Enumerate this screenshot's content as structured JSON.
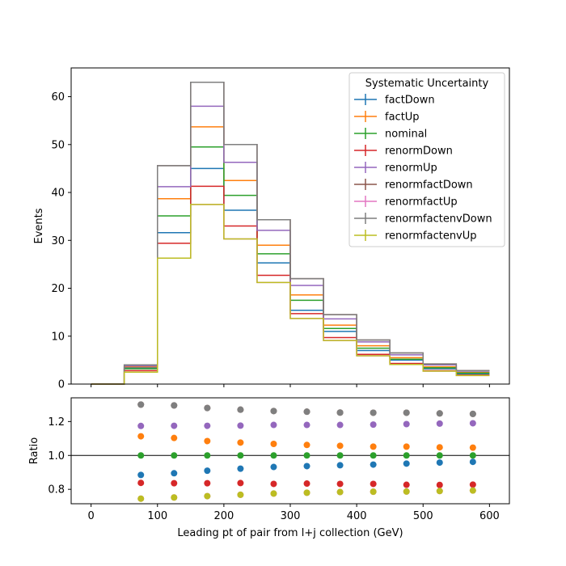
{
  "chart_data": [
    {
      "type": "line",
      "subtype": "step-histogram",
      "xlabel": "",
      "ylabel": "Events",
      "xlim": [
        -30,
        630
      ],
      "ylim": [
        0,
        66
      ],
      "xticks": [
        0,
        100,
        200,
        300,
        400,
        500,
        600
      ],
      "yticks": [
        0,
        10,
        20,
        30,
        40,
        50,
        60
      ],
      "bin_edges": [
        0,
        50,
        100,
        150,
        200,
        250,
        300,
        350,
        400,
        450,
        500,
        550,
        600
      ],
      "legend": {
        "title": "Systematic Uncertainty",
        "placement": "top-right"
      },
      "series": [
        {
          "name": "factDown",
          "color": "#1f77b4",
          "values": [
            0,
            3.4,
            31.6,
            45.0,
            36.3,
            25.3,
            15.4,
            11.0,
            7.0,
            5.0,
            3.2,
            2.1
          ]
        },
        {
          "name": "factUp",
          "color": "#ff7f0e",
          "values": [
            0,
            3.6,
            38.7,
            53.7,
            42.5,
            29.0,
            18.6,
            12.3,
            8.0,
            5.5,
            3.6,
            2.4
          ]
        },
        {
          "name": "nominal",
          "color": "#2ca02c",
          "values": [
            0,
            3.2,
            35.1,
            49.5,
            39.4,
            27.2,
            17.5,
            11.6,
            7.5,
            5.2,
            3.4,
            2.3
          ]
        },
        {
          "name": "renormDown",
          "color": "#d62728",
          "values": [
            0,
            2.8,
            29.4,
            41.3,
            33.0,
            22.7,
            14.7,
            9.7,
            6.2,
            4.3,
            2.8,
            1.9
          ]
        },
        {
          "name": "renormUp",
          "color": "#9467bd",
          "values": [
            0,
            3.8,
            41.2,
            58.0,
            46.3,
            32.1,
            20.6,
            13.6,
            8.8,
            6.1,
            4.0,
            2.7
          ]
        },
        {
          "name": "renormfactDown",
          "color": "#8c564b",
          "values": [
            0,
            4.0,
            45.6,
            63.0,
            50.0,
            34.3,
            22.0,
            14.5,
            9.2,
            6.5,
            4.2,
            2.8
          ]
        },
        {
          "name": "renormfactUp",
          "color": "#e377c2",
          "values": [
            0,
            2.5,
            26.3,
            37.5,
            30.3,
            21.2,
            13.7,
            9.1,
            5.9,
            4.1,
            2.7,
            1.8
          ]
        },
        {
          "name": "renormfactenvDown",
          "color": "#7f7f7f",
          "values": [
            0,
            4.0,
            45.6,
            63.0,
            50.0,
            34.3,
            22.0,
            14.5,
            9.2,
            6.5,
            4.2,
            2.8
          ]
        },
        {
          "name": "renormfactenvUp",
          "color": "#bcbd22",
          "values": [
            0,
            2.5,
            26.3,
            37.5,
            30.3,
            21.2,
            13.7,
            9.1,
            5.9,
            4.1,
            2.7,
            1.8
          ]
        }
      ]
    },
    {
      "type": "scatter",
      "xlabel": "Leading pt of pair from l+j collection (GeV)",
      "ylabel": "Ratio",
      "xlim": [
        -30,
        630
      ],
      "ylim": [
        0.715,
        1.34
      ],
      "xticks": [
        0,
        100,
        200,
        300,
        400,
        500,
        600
      ],
      "yticks": [
        0.8,
        1.0,
        1.2
      ],
      "reference_line": 1.0,
      "x": [
        75,
        125,
        175,
        225,
        275,
        325,
        375,
        425,
        475,
        525,
        575
      ],
      "series": [
        {
          "name": "factDown",
          "color": "#1f77b4",
          "values": [
            0.885,
            0.895,
            0.91,
            0.922,
            0.932,
            0.937,
            0.942,
            0.946,
            0.952,
            0.958,
            0.962
          ]
        },
        {
          "name": "factUp",
          "color": "#ff7f0e",
          "values": [
            1.113,
            1.103,
            1.085,
            1.076,
            1.068,
            1.062,
            1.057,
            1.052,
            1.052,
            1.048,
            1.046
          ]
        },
        {
          "name": "nominal",
          "color": "#2ca02c",
          "values": [
            1.0,
            1.0,
            1.0,
            1.0,
            1.0,
            1.0,
            1.0,
            1.0,
            1.0,
            1.0,
            1.0
          ]
        },
        {
          "name": "renormDown",
          "color": "#d62728",
          "values": [
            0.838,
            0.836,
            0.836,
            0.837,
            0.832,
            0.834,
            0.832,
            0.832,
            0.827,
            0.826,
            0.828
          ]
        },
        {
          "name": "renormUp",
          "color": "#9467bd",
          "values": [
            1.174,
            1.175,
            1.175,
            1.176,
            1.18,
            1.18,
            1.18,
            1.182,
            1.185,
            1.188,
            1.19
          ]
        },
        {
          "name": "renormfactDown",
          "color": "#8c564b",
          "values": [
            1.3,
            1.295,
            1.28,
            1.27,
            1.262,
            1.258,
            1.253,
            1.252,
            1.252,
            1.248,
            1.245
          ]
        },
        {
          "name": "renormfactUp",
          "color": "#e377c2",
          "values": [
            0.745,
            0.752,
            0.76,
            0.768,
            0.775,
            0.78,
            0.784,
            0.786,
            0.787,
            0.79,
            0.793
          ]
        },
        {
          "name": "renormfactenvDown",
          "color": "#7f7f7f",
          "values": [
            1.3,
            1.295,
            1.28,
            1.27,
            1.262,
            1.258,
            1.253,
            1.252,
            1.252,
            1.248,
            1.245
          ]
        },
        {
          "name": "renormfactenvUp",
          "color": "#bcbd22",
          "values": [
            0.745,
            0.752,
            0.76,
            0.768,
            0.775,
            0.78,
            0.784,
            0.786,
            0.787,
            0.79,
            0.793
          ]
        }
      ]
    }
  ]
}
